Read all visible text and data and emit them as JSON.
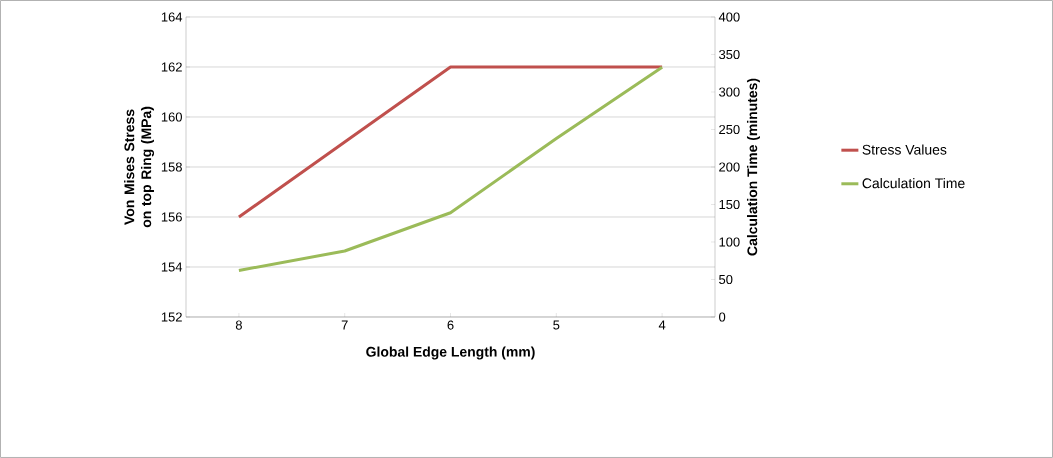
{
  "chart_data": {
    "type": "line",
    "xlabel": "Global Edge Length (mm)",
    "ylabel": "Von Mises Stress on top Ring (MPa)",
    "y2label": "Calculation Time (minutes)",
    "categories": [
      "8",
      "7",
      "6",
      "5",
      "4"
    ],
    "series": [
      {
        "name": "Stress Values",
        "color": "#c0504d",
        "values": [
          156,
          159,
          162,
          162,
          162
        ]
      },
      {
        "name": "Calculation Time",
        "color": "#9bbb59",
        "axis": "y2",
        "values": [
          62,
          88,
          139,
          238,
          333
        ]
      }
    ],
    "ylim": [
      152,
      164
    ],
    "yticks": [
      152,
      154,
      156,
      158,
      160,
      162,
      164
    ],
    "y2lim": [
      0,
      400
    ],
    "y2ticks": [
      0,
      50,
      100,
      150,
      200,
      250,
      300,
      350,
      400
    ],
    "grid": "y",
    "legend": "right",
    "marker": "none",
    "line_style": "solid"
  }
}
